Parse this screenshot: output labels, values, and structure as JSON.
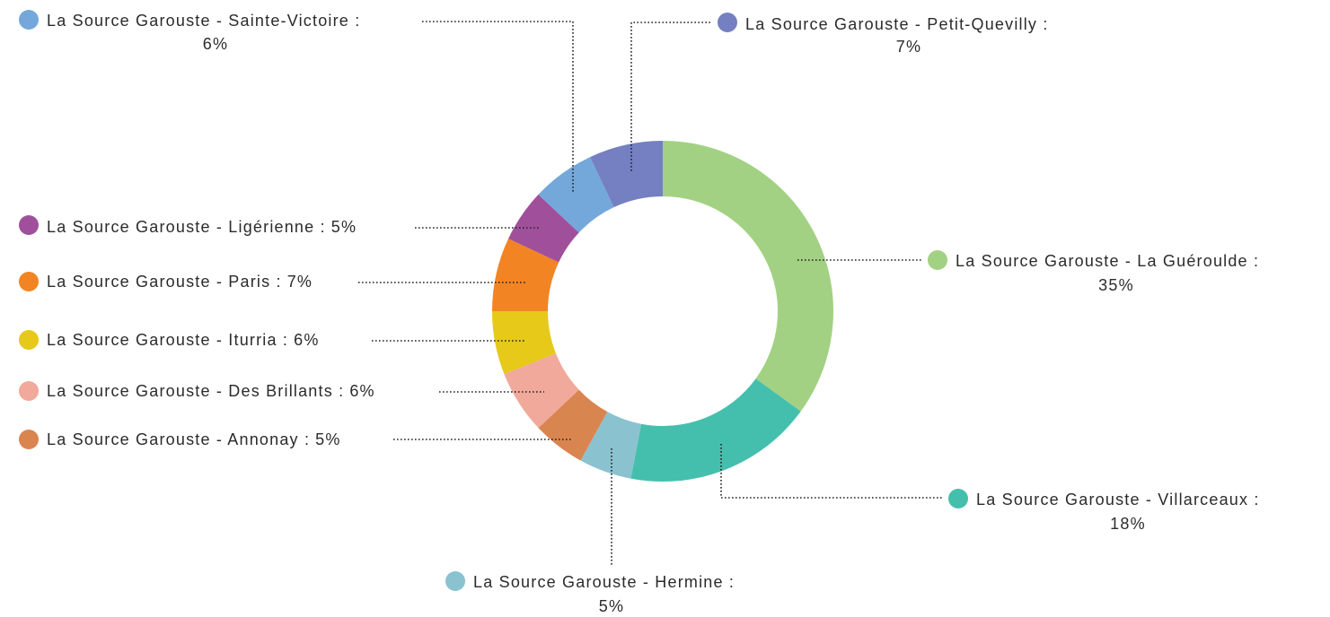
{
  "chart_data": {
    "type": "donut",
    "categories": [
      "La Source Garouste - La Guéroulde :",
      "La Source Garouste - Villarceaux :",
      "La Source Garouste - Hermine :",
      "La Source Garouste - Annonay :",
      "La Source Garouste - Des Brillants :",
      "La Source Garouste - Iturria :",
      "La Source Garouste - Paris :",
      "La Source Garouste - Ligérienne :",
      "La Source Garouste - Sainte-Victoire :",
      "La Source Garouste - Petit-Quevilly :"
    ],
    "values": [
      35,
      18,
      5,
      5,
      6,
      6,
      7,
      5,
      6,
      7
    ],
    "value_labels": [
      "35%",
      "18%",
      "5%",
      "5%",
      "6%",
      "6%",
      "7%",
      "5%",
      "6%",
      "7%"
    ],
    "colors": [
      "#a3d183",
      "#45bfad",
      "#8ac2cf",
      "#d98550",
      "#f0a99b",
      "#e6c919",
      "#f28424",
      "#a0509b",
      "#74a8db",
      "#7580c2"
    ]
  }
}
